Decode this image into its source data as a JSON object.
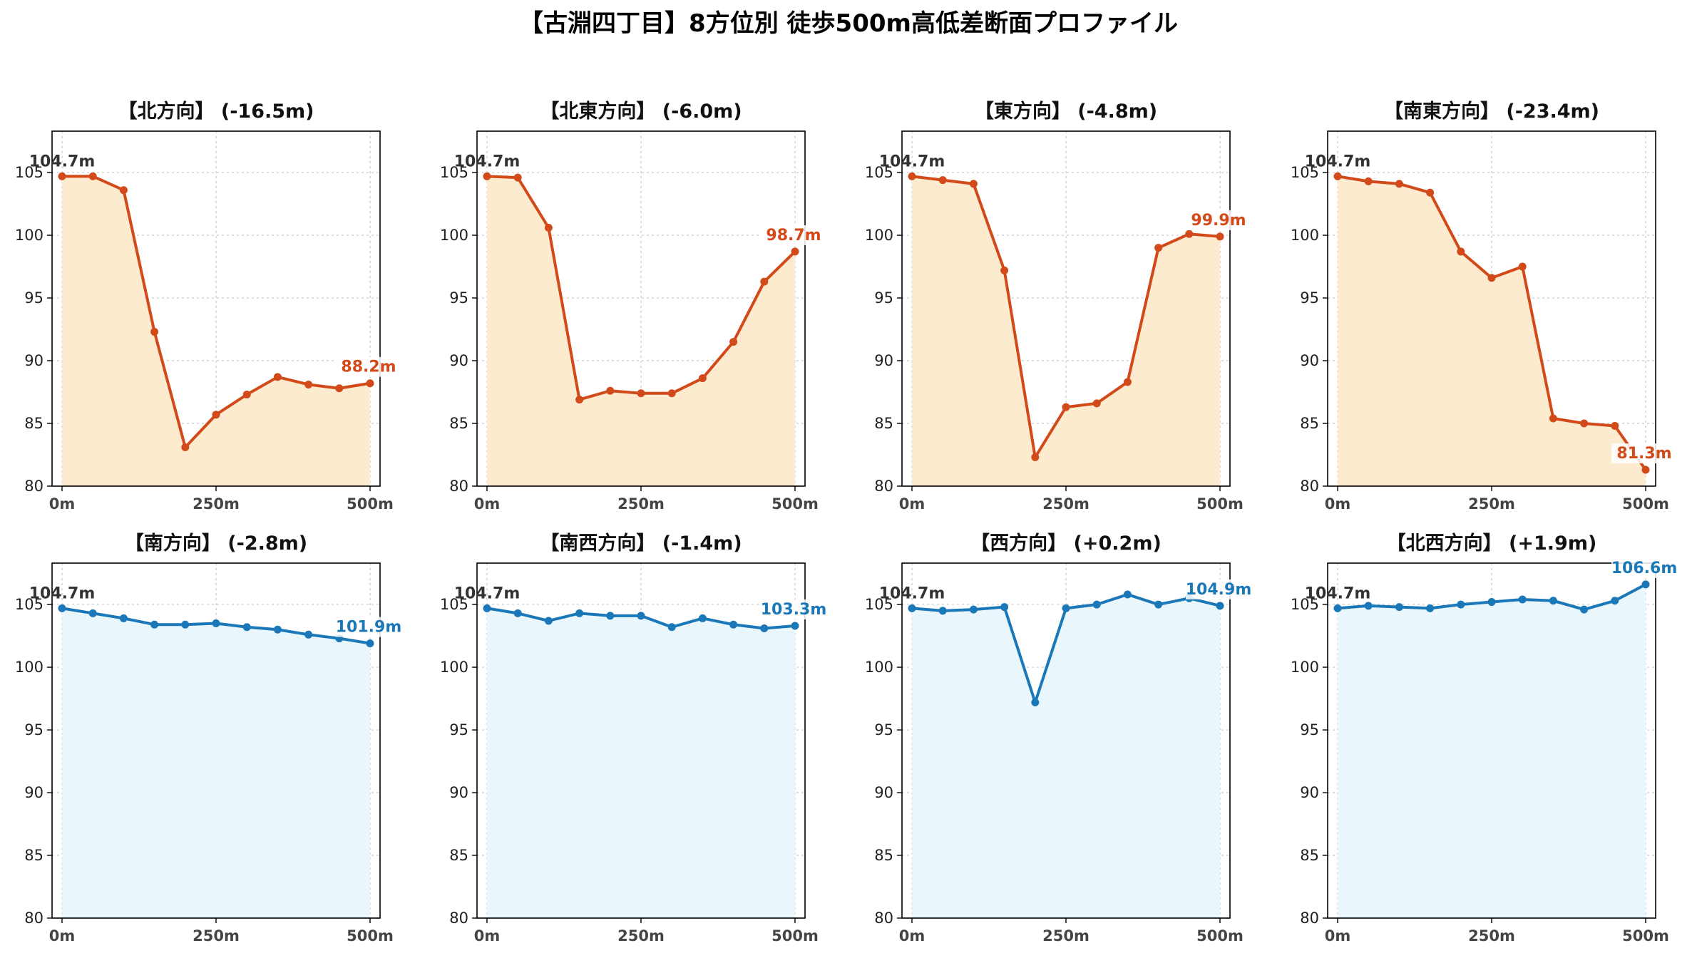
{
  "figure": {
    "title": "【古淵四丁目】8方位別 徒歩500m高低差断面プロファイル"
  },
  "colors": {
    "down_line": "#d24a1a",
    "down_fill": "#fdebd0",
    "up_line": "#1a78b8",
    "up_fill": "#e9f6fc"
  },
  "chart_data": [
    {
      "type": "area",
      "title": "【北方向】 (-16.5m)",
      "trend": "down",
      "x": [
        0,
        50,
        100,
        150,
        200,
        250,
        300,
        350,
        400,
        450,
        500
      ],
      "values": [
        104.7,
        104.7,
        103.6,
        92.3,
        83.1,
        85.7,
        87.3,
        88.7,
        88.1,
        87.8,
        88.2
      ],
      "start_label": "104.7m",
      "end_label": "88.2m",
      "ylim": [
        80,
        108.3
      ],
      "yticks": [
        80,
        85,
        90,
        95,
        100,
        105
      ],
      "xticks": [
        "0m",
        "250m",
        "500m"
      ],
      "grid": true
    },
    {
      "type": "area",
      "title": "【北東方向】 (-6.0m)",
      "trend": "down",
      "x": [
        0,
        50,
        100,
        150,
        200,
        250,
        300,
        350,
        400,
        450,
        500
      ],
      "values": [
        104.7,
        104.6,
        100.6,
        86.9,
        87.6,
        87.4,
        87.4,
        88.6,
        91.5,
        96.3,
        98.7
      ],
      "start_label": "104.7m",
      "end_label": "98.7m",
      "ylim": [
        80,
        108.3
      ],
      "yticks": [
        80,
        85,
        90,
        95,
        100,
        105
      ],
      "xticks": [
        "0m",
        "250m",
        "500m"
      ],
      "grid": true
    },
    {
      "type": "area",
      "title": "【東方向】 (-4.8m)",
      "trend": "down",
      "x": [
        0,
        50,
        100,
        150,
        200,
        250,
        300,
        350,
        400,
        450,
        500
      ],
      "values": [
        104.7,
        104.4,
        104.1,
        97.2,
        82.3,
        86.3,
        86.6,
        88.3,
        99.0,
        100.1,
        99.9
      ],
      "start_label": "104.7m",
      "end_label": "99.9m",
      "ylim": [
        80,
        108.3
      ],
      "yticks": [
        80,
        85,
        90,
        95,
        100,
        105
      ],
      "xticks": [
        "0m",
        "250m",
        "500m"
      ],
      "grid": true
    },
    {
      "type": "area",
      "title": "【南東方向】 (-23.4m)",
      "trend": "down",
      "x": [
        0,
        50,
        100,
        150,
        200,
        250,
        300,
        350,
        400,
        450,
        500
      ],
      "values": [
        104.7,
        104.3,
        104.1,
        103.4,
        98.7,
        96.6,
        97.5,
        85.4,
        85.0,
        84.8,
        81.3
      ],
      "start_label": "104.7m",
      "end_label": "81.3m",
      "ylim": [
        80,
        108.3
      ],
      "yticks": [
        80,
        85,
        90,
        95,
        100,
        105
      ],
      "xticks": [
        "0m",
        "250m",
        "500m"
      ],
      "grid": true
    },
    {
      "type": "area",
      "title": "【南方向】 (-2.8m)",
      "trend": "up",
      "x": [
        0,
        50,
        100,
        150,
        200,
        250,
        300,
        350,
        400,
        450,
        500
      ],
      "values": [
        104.7,
        104.3,
        103.9,
        103.4,
        103.4,
        103.5,
        103.2,
        103.0,
        102.6,
        102.3,
        101.9
      ],
      "start_label": "104.7m",
      "end_label": "101.9m",
      "ylim": [
        80,
        108.3
      ],
      "yticks": [
        80,
        85,
        90,
        95,
        100,
        105
      ],
      "xticks": [
        "0m",
        "250m",
        "500m"
      ],
      "grid": true
    },
    {
      "type": "area",
      "title": "【南西方向】 (-1.4m)",
      "trend": "up",
      "x": [
        0,
        50,
        100,
        150,
        200,
        250,
        300,
        350,
        400,
        450,
        500
      ],
      "values": [
        104.7,
        104.3,
        103.7,
        104.3,
        104.1,
        104.1,
        103.2,
        103.9,
        103.4,
        103.1,
        103.3
      ],
      "start_label": "104.7m",
      "end_label": "103.3m",
      "ylim": [
        80,
        108.3
      ],
      "yticks": [
        80,
        85,
        90,
        95,
        100,
        105
      ],
      "xticks": [
        "0m",
        "250m",
        "500m"
      ],
      "grid": true
    },
    {
      "type": "area",
      "title": "【西方向】 (+0.2m)",
      "trend": "up",
      "x": [
        0,
        50,
        100,
        150,
        200,
        250,
        300,
        350,
        400,
        450,
        500
      ],
      "values": [
        104.7,
        104.5,
        104.6,
        104.8,
        97.2,
        104.7,
        105.0,
        105.8,
        105.0,
        105.5,
        104.9
      ],
      "start_label": "104.7m",
      "end_label": "104.9m",
      "ylim": [
        80,
        108.3
      ],
      "yticks": [
        80,
        85,
        90,
        95,
        100,
        105
      ],
      "xticks": [
        "0m",
        "250m",
        "500m"
      ],
      "grid": true
    },
    {
      "type": "area",
      "title": "【北西方向】 (+1.9m)",
      "trend": "up",
      "x": [
        0,
        50,
        100,
        150,
        200,
        250,
        300,
        350,
        400,
        450,
        500
      ],
      "values": [
        104.7,
        104.9,
        104.8,
        104.7,
        105.0,
        105.2,
        105.4,
        105.3,
        104.6,
        105.3,
        106.6
      ],
      "start_label": "104.7m",
      "end_label": "106.6m",
      "ylim": [
        80,
        108.3
      ],
      "yticks": [
        80,
        85,
        90,
        95,
        100,
        105
      ],
      "xticks": [
        "0m",
        "250m",
        "500m"
      ],
      "grid": true
    }
  ]
}
